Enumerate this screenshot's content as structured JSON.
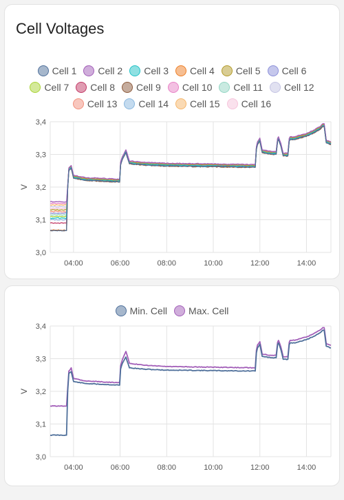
{
  "cards": [
    {
      "title": "Cell Voltages",
      "legend": [
        {
          "label": "Cell 1",
          "color": "#4e6f9a"
        },
        {
          "label": "Cell 2",
          "color": "#a25eb8"
        },
        {
          "label": "Cell 3",
          "color": "#1fc2c6"
        },
        {
          "label": "Cell 4",
          "color": "#ee7e25"
        },
        {
          "label": "Cell 5",
          "color": "#b39b2a"
        },
        {
          "label": "Cell 6",
          "color": "#8b8fd9"
        },
        {
          "label": "Cell 7",
          "color": "#a9d435"
        },
        {
          "label": "Cell 8",
          "color": "#c23966"
        },
        {
          "label": "Cell 9",
          "color": "#8c5a3b"
        },
        {
          "label": "Cell 10",
          "color": "#e882c6"
        },
        {
          "label": "Cell 11",
          "color": "#93d6c3"
        },
        {
          "label": "Cell 12",
          "color": "#c4c3e3"
        },
        {
          "label": "Cell 13",
          "color": "#f2907d"
        },
        {
          "label": "Cell 14",
          "color": "#89b7df"
        },
        {
          "label": "Cell 15",
          "color": "#f6b66a"
        },
        {
          "label": "Cell 16",
          "color": "#f6c4db"
        }
      ]
    },
    {
      "title": "",
      "legend": [
        {
          "label": "Min. Cell",
          "color": "#4e6f9a"
        },
        {
          "label": "Max. Cell",
          "color": "#a25eb8"
        }
      ]
    }
  ],
  "chart_data": [
    {
      "type": "line",
      "title": "Cell Voltages",
      "ylabel": "V",
      "ylim": [
        3.0,
        3.4
      ],
      "yticks": [
        "3,0",
        "3,1",
        "3,2",
        "3,3",
        "3,4"
      ],
      "xlim": [
        3.0,
        15.05
      ],
      "xticks": [
        {
          "t": 4,
          "label": "04:00"
        },
        {
          "t": 6,
          "label": "06:00"
        },
        {
          "t": 8,
          "label": "08:00"
        },
        {
          "t": 10,
          "label": "10:00"
        },
        {
          "t": 12,
          "label": "12:00"
        },
        {
          "t": 14,
          "label": "14:00"
        }
      ],
      "grid": true,
      "legend_position": "top",
      "base_curve": {
        "x": [
          3.7,
          3.75,
          3.8,
          3.9,
          4.0,
          4.5,
          5.98,
          6.02,
          6.1,
          6.25,
          6.4,
          7.0,
          8.0,
          11.8,
          11.85,
          11.9,
          12.0,
          12.1,
          12.5,
          12.7,
          12.76,
          12.8,
          12.9,
          13.0,
          13.2,
          13.26,
          13.3,
          13.5,
          13.7,
          14.0,
          14.3,
          14.55,
          14.7,
          14.76,
          14.85,
          15.05
        ],
        "y": [
          3.066,
          3.2,
          3.255,
          3.262,
          3.232,
          3.225,
          3.22,
          3.272,
          3.29,
          3.31,
          3.276,
          3.272,
          3.269,
          3.265,
          3.32,
          3.335,
          3.346,
          3.31,
          3.305,
          3.305,
          3.345,
          3.35,
          3.33,
          3.3,
          3.3,
          3.345,
          3.35,
          3.35,
          3.355,
          3.36,
          3.37,
          3.38,
          3.39,
          3.39,
          3.34,
          3.335
        ]
      },
      "series": [
        {
          "name": "Cell 1",
          "start": 3.067,
          "offset": -0.004
        },
        {
          "name": "Cell 2",
          "start": 3.155,
          "offset": 0.004
        },
        {
          "name": "Cell 3",
          "start": 3.105,
          "offset": -0.002
        },
        {
          "name": "Cell 4",
          "start": 3.068,
          "offset": -0.003
        },
        {
          "name": "Cell 5",
          "start": 3.13,
          "offset": 0.001
        },
        {
          "name": "Cell 6",
          "start": 3.12,
          "offset": 0.0
        },
        {
          "name": "Cell 7",
          "start": 3.11,
          "offset": -0.001
        },
        {
          "name": "Cell 8",
          "start": 3.09,
          "offset": 0.0
        },
        {
          "name": "Cell 9",
          "start": 3.067,
          "offset": -0.005
        },
        {
          "name": "Cell 10",
          "start": 3.15,
          "offset": 0.003
        },
        {
          "name": "Cell 11",
          "start": 3.115,
          "offset": -0.001
        },
        {
          "name": "Cell 12",
          "start": 3.14,
          "offset": 0.002
        },
        {
          "name": "Cell 13",
          "start": 3.125,
          "offset": 0.002
        },
        {
          "name": "Cell 14",
          "start": 3.1,
          "offset": -0.002
        },
        {
          "name": "Cell 15",
          "start": 3.145,
          "offset": 0.001
        },
        {
          "name": "Cell 16",
          "start": 3.135,
          "offset": 0.003
        }
      ]
    },
    {
      "type": "line",
      "ylabel": "V",
      "ylim": [
        3.0,
        3.4
      ],
      "yticks": [
        "3,0",
        "3,1",
        "3,2",
        "3,3",
        "3,4"
      ],
      "xlim": [
        3.0,
        15.05
      ],
      "xticks": [
        {
          "t": 4,
          "label": "04:00"
        },
        {
          "t": 6,
          "label": "06:00"
        },
        {
          "t": 8,
          "label": "08:00"
        },
        {
          "t": 10,
          "label": "10:00"
        },
        {
          "t": 12,
          "label": "12:00"
        },
        {
          "t": 14,
          "label": "14:00"
        }
      ],
      "grid": true,
      "legend_position": "top",
      "series": [
        {
          "name": "Min. Cell",
          "x": [
            3.0,
            3.7,
            3.75,
            3.8,
            3.9,
            4.0,
            4.5,
            5.98,
            6.02,
            6.1,
            6.25,
            6.4,
            7.0,
            8.0,
            11.8,
            11.85,
            11.9,
            12.0,
            12.1,
            12.5,
            12.7,
            12.76,
            12.8,
            12.9,
            13.0,
            13.2,
            13.26,
            13.3,
            13.5,
            13.7,
            14.0,
            14.3,
            14.55,
            14.7,
            14.76,
            14.85,
            15.05
          ],
          "y": [
            3.066,
            3.066,
            3.2,
            3.255,
            3.26,
            3.23,
            3.224,
            3.219,
            3.268,
            3.286,
            3.305,
            3.272,
            3.268,
            3.265,
            3.262,
            3.318,
            3.333,
            3.344,
            3.307,
            3.303,
            3.303,
            3.343,
            3.348,
            3.328,
            3.298,
            3.298,
            3.343,
            3.348,
            3.348,
            3.353,
            3.358,
            3.368,
            3.378,
            3.387,
            3.387,
            3.338,
            3.333
          ]
        },
        {
          "name": "Max. Cell",
          "x": [
            3.0,
            3.7,
            3.75,
            3.8,
            3.9,
            4.0,
            4.5,
            5.98,
            6.02,
            6.1,
            6.25,
            6.4,
            7.0,
            8.0,
            11.8,
            11.85,
            11.9,
            12.0,
            12.1,
            12.5,
            12.7,
            12.76,
            12.8,
            12.9,
            13.0,
            13.2,
            13.26,
            13.3,
            13.5,
            13.7,
            14.0,
            14.3,
            14.55,
            14.7,
            14.76,
            14.85,
            15.05
          ],
          "y": [
            3.155,
            3.155,
            3.21,
            3.262,
            3.272,
            3.24,
            3.232,
            3.226,
            3.278,
            3.298,
            3.322,
            3.286,
            3.28,
            3.276,
            3.272,
            3.326,
            3.342,
            3.352,
            3.314,
            3.31,
            3.31,
            3.35,
            3.356,
            3.336,
            3.306,
            3.306,
            3.35,
            3.356,
            3.356,
            3.361,
            3.366,
            3.376,
            3.386,
            3.395,
            3.395,
            3.346,
            3.341
          ]
        }
      ]
    }
  ]
}
